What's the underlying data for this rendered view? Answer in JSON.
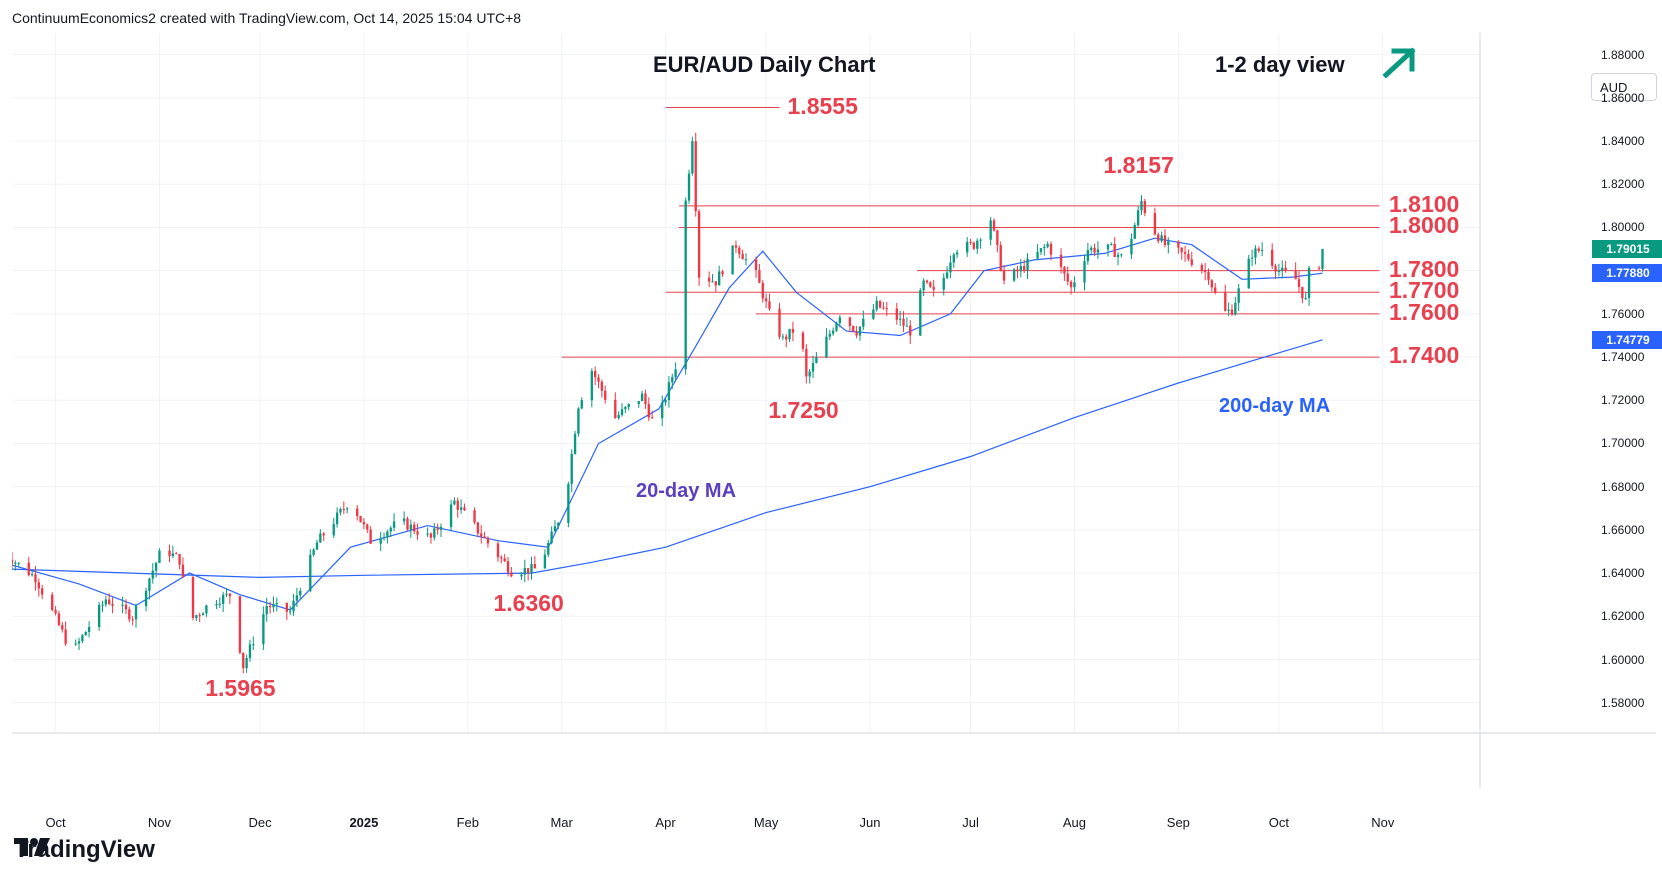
{
  "header": {
    "credit": "ContinuumEconomics2 created with TradingView.com, Oct 14, 2025 15:04 UTC+8"
  },
  "footer": {
    "brand": "TradingView"
  },
  "currency_badge": "AUD",
  "colors": {
    "up": "#089981",
    "down": "#f23645",
    "ma": "#2962ff",
    "level": "#e8404e",
    "ma_label": "#5b3fbf",
    "accent_arrow": "#089981"
  },
  "chart_data": {
    "type": "candlestick",
    "title": "EUR/AUD Daily Chart",
    "view": "1-2 day view",
    "view_direction": "up",
    "y_axis": {
      "position": "right",
      "range": [
        1.566,
        1.89
      ],
      "ticks": [
        "1.88000",
        "1.86000",
        "1.84000",
        "1.82000",
        "1.80000",
        "1.78000",
        "1.76000",
        "1.74000",
        "1.72000",
        "1.70000",
        "1.68000",
        "1.66000",
        "1.64000",
        "1.62000",
        "1.60000",
        "1.58000"
      ]
    },
    "x_axis": {
      "range": [
        "2024-09-18",
        "2025-11-30"
      ],
      "ticks": [
        {
          "label": "Oct",
          "date": "2024-10-01",
          "bold": false
        },
        {
          "label": "Nov",
          "date": "2024-11-01",
          "bold": false
        },
        {
          "label": "Dec",
          "date": "2024-12-01",
          "bold": false
        },
        {
          "label": "2025",
          "date": "2025-01-01",
          "bold": true
        },
        {
          "label": "Feb",
          "date": "2025-02-01",
          "bold": false
        },
        {
          "label": "Mar",
          "date": "2025-03-01",
          "bold": false
        },
        {
          "label": "Apr",
          "date": "2025-04-01",
          "bold": false
        },
        {
          "label": "May",
          "date": "2025-05-01",
          "bold": false
        },
        {
          "label": "Jun",
          "date": "2025-06-01",
          "bold": false
        },
        {
          "label": "Jul",
          "date": "2025-07-01",
          "bold": false
        },
        {
          "label": "Aug",
          "date": "2025-08-01",
          "bold": false
        },
        {
          "label": "Sep",
          "date": "2025-09-01",
          "bold": false
        },
        {
          "label": "Oct",
          "date": "2025-10-01",
          "bold": false
        },
        {
          "label": "Nov",
          "date": "2025-11-01",
          "bold": false
        }
      ]
    },
    "price_path": [
      [
        "2024-09-15",
        1.65
      ],
      [
        "2024-09-25",
        1.638
      ],
      [
        "2024-10-06",
        1.603
      ],
      [
        "2024-10-16",
        1.628
      ],
      [
        "2024-10-24",
        1.62
      ],
      [
        "2024-11-02",
        1.652
      ],
      [
        "2024-11-07",
        1.646
      ],
      [
        "2024-11-10",
        1.618
      ],
      [
        "2024-11-17",
        1.627
      ],
      [
        "2024-11-22",
        1.63
      ],
      [
        "2024-11-26",
        1.597
      ],
      [
        "2024-12-03",
        1.625
      ],
      [
        "2024-12-10",
        1.622
      ],
      [
        "2024-12-18",
        1.654
      ],
      [
        "2024-12-25",
        1.668
      ],
      [
        "2024-12-28",
        1.674
      ],
      [
        "2025-01-03",
        1.655
      ],
      [
        "2025-01-12",
        1.664
      ],
      [
        "2025-01-21",
        1.656
      ],
      [
        "2025-01-28",
        1.673
      ],
      [
        "2025-02-08",
        1.652
      ],
      [
        "2025-02-14",
        1.641
      ],
      [
        "2025-02-22",
        1.642
      ],
      [
        "2025-03-02",
        1.672
      ],
      [
        "2025-03-06",
        1.718
      ],
      [
        "2025-03-10",
        1.734
      ],
      [
        "2025-03-17",
        1.712
      ],
      [
        "2025-03-25",
        1.722
      ],
      [
        "2025-03-29",
        1.707
      ],
      [
        "2025-04-04",
        1.736
      ],
      [
        "2025-04-07",
        1.812
      ],
      [
        "2025-04-09",
        1.842
      ],
      [
        "2025-04-11",
        1.778
      ],
      [
        "2025-04-16",
        1.775
      ],
      [
        "2025-04-22",
        1.792
      ],
      [
        "2025-04-28",
        1.778
      ],
      [
        "2025-05-02",
        1.76
      ],
      [
        "2025-05-06",
        1.748
      ],
      [
        "2025-05-11",
        1.755
      ],
      [
        "2025-05-13",
        1.73
      ],
      [
        "2025-05-17",
        1.742
      ],
      [
        "2025-05-23",
        1.76
      ],
      [
        "2025-05-28",
        1.752
      ],
      [
        "2025-06-03",
        1.764
      ],
      [
        "2025-06-09",
        1.758
      ],
      [
        "2025-06-13",
        1.752
      ],
      [
        "2025-06-17",
        1.774
      ],
      [
        "2025-06-21",
        1.768
      ],
      [
        "2025-06-26",
        1.79
      ],
      [
        "2025-07-02",
        1.792
      ],
      [
        "2025-07-07",
        1.804
      ],
      [
        "2025-07-11",
        1.775
      ],
      [
        "2025-07-17",
        1.782
      ],
      [
        "2025-07-24",
        1.792
      ],
      [
        "2025-07-31",
        1.772
      ],
      [
        "2025-08-05",
        1.79
      ],
      [
        "2025-08-12",
        1.79
      ],
      [
        "2025-08-16",
        1.785
      ],
      [
        "2025-08-21",
        1.812
      ],
      [
        "2025-08-24",
        1.8
      ],
      [
        "2025-08-28",
        1.792
      ],
      [
        "2025-09-04",
        1.786
      ],
      [
        "2025-09-10",
        1.778
      ],
      [
        "2025-09-14",
        1.76
      ],
      [
        "2025-09-17",
        1.762
      ],
      [
        "2025-09-23",
        1.788
      ],
      [
        "2025-09-26",
        1.79
      ],
      [
        "2025-10-01",
        1.78
      ],
      [
        "2025-10-06",
        1.776
      ],
      [
        "2025-10-09",
        1.766
      ],
      [
        "2025-10-11",
        1.792
      ],
      [
        "2025-10-13",
        1.783
      ],
      [
        "2025-10-14",
        1.79
      ]
    ],
    "ma20_path": [
      [
        "2024-09-15",
        1.645
      ],
      [
        "2024-10-08",
        1.635
      ],
      [
        "2024-10-25",
        1.625
      ],
      [
        "2024-11-10",
        1.64
      ],
      [
        "2024-11-25",
        1.63
      ],
      [
        "2024-12-10",
        1.623
      ],
      [
        "2024-12-28",
        1.652
      ],
      [
        "2025-01-20",
        1.662
      ],
      [
        "2025-02-10",
        1.655
      ],
      [
        "2025-02-25",
        1.652
      ],
      [
        "2025-03-12",
        1.7
      ],
      [
        "2025-03-30",
        1.716
      ],
      [
        "2025-04-10",
        1.745
      ],
      [
        "2025-04-20",
        1.772
      ],
      [
        "2025-04-30",
        1.789
      ],
      [
        "2025-05-10",
        1.77
      ],
      [
        "2025-05-25",
        1.752
      ],
      [
        "2025-06-10",
        1.75
      ],
      [
        "2025-06-25",
        1.76
      ],
      [
        "2025-07-05",
        1.78
      ],
      [
        "2025-07-20",
        1.785
      ],
      [
        "2025-08-10",
        1.788
      ],
      [
        "2025-08-25",
        1.795
      ],
      [
        "2025-09-05",
        1.792
      ],
      [
        "2025-09-20",
        1.776
      ],
      [
        "2025-10-05",
        1.777
      ],
      [
        "2025-10-14",
        1.7788
      ]
    ],
    "ma200_path": [
      [
        "2024-09-15",
        1.642
      ],
      [
        "2024-12-01",
        1.638
      ],
      [
        "2025-01-01",
        1.639
      ],
      [
        "2025-02-20",
        1.64
      ],
      [
        "2025-03-10",
        1.645
      ],
      [
        "2025-04-01",
        1.652
      ],
      [
        "2025-05-01",
        1.668
      ],
      [
        "2025-06-01",
        1.68
      ],
      [
        "2025-07-01",
        1.694
      ],
      [
        "2025-08-01",
        1.712
      ],
      [
        "2025-09-01",
        1.728
      ],
      [
        "2025-10-01",
        1.742
      ],
      [
        "2025-10-14",
        1.748
      ]
    ],
    "levels": [
      {
        "label": "1.8555",
        "value": 1.8555,
        "from": "2025-04-01",
        "to": "2025-05-05"
      },
      {
        "label": "1.8100",
        "value": 1.81,
        "from": "2025-04-05",
        "to": "2025-10-31"
      },
      {
        "label": "1.8000",
        "value": 1.8,
        "from": "2025-04-05",
        "to": "2025-10-31"
      },
      {
        "label": "1.7800",
        "value": 1.78,
        "from": "2025-06-15",
        "to": "2025-10-31"
      },
      {
        "label": "1.7700",
        "value": 1.77,
        "from": "2025-04-01",
        "to": "2025-10-31"
      },
      {
        "label": "1.7600",
        "value": 1.76,
        "from": "2025-04-28",
        "to": "2025-10-31"
      },
      {
        "label": "1.7400",
        "value": 1.74,
        "from": "2025-03-01",
        "to": "2025-10-31"
      }
    ],
    "annotations": [
      {
        "label": "1.8157",
        "date": "2025-08-21",
        "value": 1.8157
      },
      {
        "label": "1.7250",
        "date": "2025-05-13",
        "value": 1.725
      },
      {
        "label": "1.6360",
        "date": "2025-02-20",
        "value": 1.636
      },
      {
        "label": "1.5965",
        "date": "2024-11-26",
        "value": 1.5965
      },
      {
        "label": "20-day MA",
        "kind": "ma20"
      },
      {
        "label": "200-day MA",
        "kind": "ma200"
      }
    ],
    "price_tags": [
      {
        "label": "1.79015",
        "value": 1.79015,
        "color": "#089981"
      },
      {
        "label": "1.77880",
        "value": 1.7788,
        "color": "#2962ff"
      },
      {
        "label": "1.74779",
        "value": 1.74779,
        "color": "#2962ff"
      }
    ]
  }
}
